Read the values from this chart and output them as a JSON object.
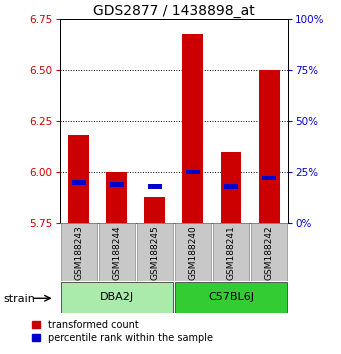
{
  "title": "GDS2877 / 1438898_at",
  "samples": [
    "GSM188243",
    "GSM188244",
    "GSM188245",
    "GSM188240",
    "GSM188241",
    "GSM188242"
  ],
  "red_values": [
    6.18,
    6.0,
    5.88,
    6.68,
    6.1,
    6.5
  ],
  "blue_percentiles": [
    20,
    19,
    18,
    25,
    18,
    22
  ],
  "ylim_left": [
    5.75,
    6.75
  ],
  "ylim_right": [
    0,
    100
  ],
  "yticks_left": [
    5.75,
    6.0,
    6.25,
    6.5,
    6.75
  ],
  "yticks_right": [
    0,
    25,
    50,
    75,
    100
  ],
  "grid_lines": [
    6.0,
    6.25,
    6.5
  ],
  "groups": [
    {
      "label": "DBA2J",
      "indices": [
        0,
        1,
        2
      ],
      "color": "#AAEAAA"
    },
    {
      "label": "C57BL6J",
      "indices": [
        3,
        4,
        5
      ],
      "color": "#33CC33"
    }
  ],
  "bar_width": 0.55,
  "base_value": 5.75,
  "red_color": "#CC0000",
  "blue_color": "#0000CC",
  "bar_bg_color": "#C8C8C8",
  "group_label_text": "strain",
  "legend_red": "transformed count",
  "legend_blue": "percentile rank within the sample",
  "title_fontsize": 10,
  "tick_fontsize": 7.5,
  "sample_fontsize": 6.5,
  "group_fontsize": 8,
  "legend_fontsize": 7
}
